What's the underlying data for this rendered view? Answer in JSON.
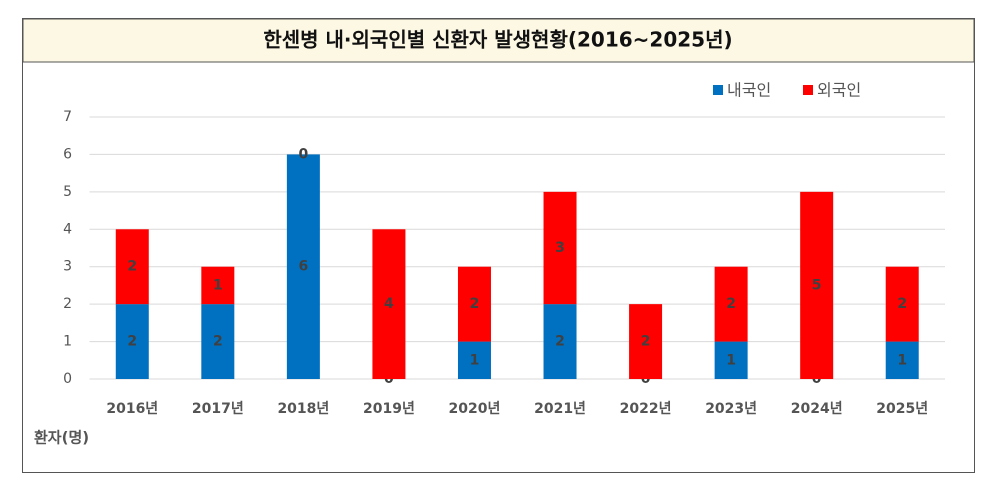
{
  "chart_data": {
    "type": "stacked_bar",
    "title": "한센병 내·외국인별 신환자 발생현황(2016~2025년)",
    "y_label": "환자(명)",
    "categories": [
      "2016년",
      "2017년",
      "2018년",
      "2019년",
      "2020년",
      "2021년",
      "2022년",
      "2023년",
      "2024년",
      "2025년"
    ],
    "series": [
      {
        "name": "내국인",
        "color": "#0070c0",
        "values": [
          2,
          2,
          6,
          0,
          1,
          2,
          0,
          1,
          0,
          1
        ]
      },
      {
        "name": "외국인",
        "color": "#ff0000",
        "values": [
          2,
          1,
          0,
          4,
          2,
          3,
          2,
          2,
          5,
          2
        ]
      }
    ],
    "ylim": [
      0,
      7
    ],
    "yticks": [
      0,
      1,
      2,
      3,
      4,
      5,
      6,
      7
    ],
    "grid": true,
    "legend": "top-right"
  }
}
